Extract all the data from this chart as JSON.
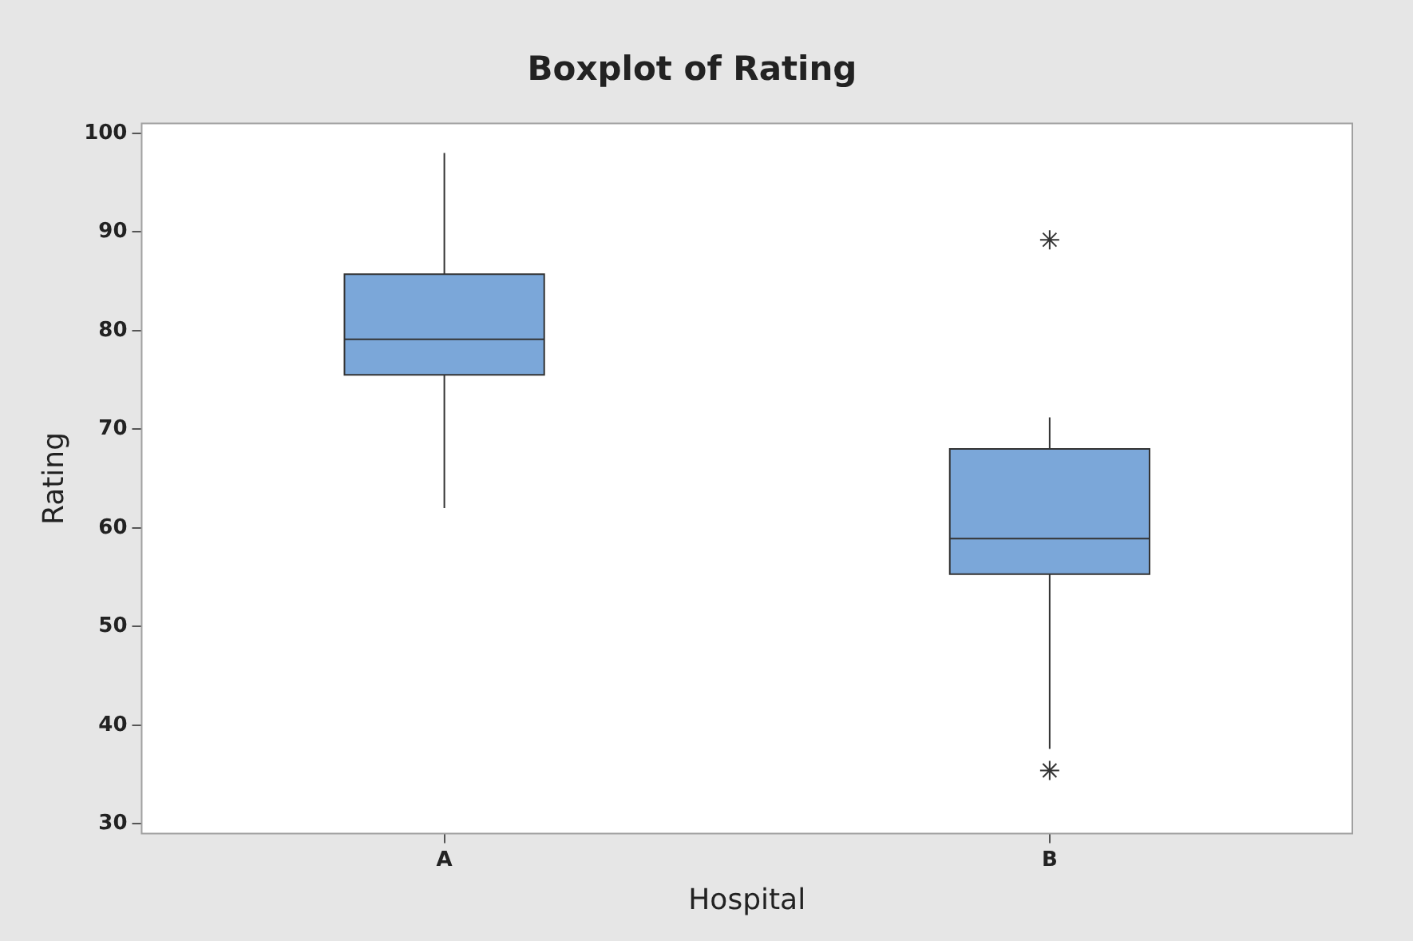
{
  "chart_data": {
    "type": "box",
    "title": "Boxplot of Rating",
    "xlabel": "Hospital",
    "ylabel": "Rating",
    "categories": [
      "A",
      "B"
    ],
    "boxes": [
      {
        "low": 62,
        "q1": 75.5,
        "median": 79.1,
        "q3": 85.7,
        "high": 98
      },
      {
        "low": 37.6,
        "q1": 55.3,
        "median": 58.9,
        "q3": 68,
        "high": 71.2,
        "outliers": [
          89.2,
          35.4
        ]
      }
    ],
    "color": "#7ba7d9",
    "ylim": [
      29,
      101
    ],
    "yticks": [
      30,
      40,
      50,
      60,
      70,
      80,
      90,
      100
    ],
    "marker": "star"
  }
}
